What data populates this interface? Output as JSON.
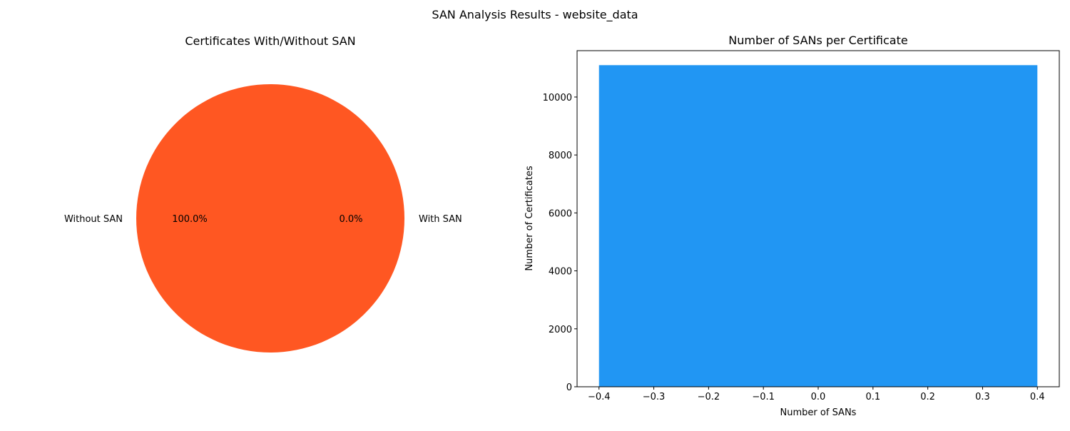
{
  "figure": {
    "suptitle": "SAN Analysis Results - website_data"
  },
  "chart_data": [
    {
      "type": "pie",
      "title": "Certificates With/Without SAN",
      "labels": [
        "With SAN",
        "Without SAN"
      ],
      "values": [
        0,
        100
      ],
      "autopct": [
        "0.0%",
        "100.0%"
      ],
      "colors": [
        "#2196F3",
        "#FF5722"
      ]
    },
    {
      "type": "bar",
      "title": "Number of SANs per Certificate",
      "xlabel": "Number of SANs",
      "ylabel": "Number of Certificates",
      "categories": [
        0
      ],
      "values": [
        11100
      ],
      "xlim": [
        -0.4,
        0.4
      ],
      "ylim": [
        0,
        11600
      ],
      "xticks": [
        "−0.4",
        "−0.3",
        "−0.2",
        "−0.1",
        "0.0",
        "0.1",
        "0.2",
        "0.3",
        "0.4"
      ],
      "yticks": [
        "0",
        "2000",
        "4000",
        "6000",
        "8000",
        "10000"
      ],
      "color": "#2196F3"
    }
  ]
}
